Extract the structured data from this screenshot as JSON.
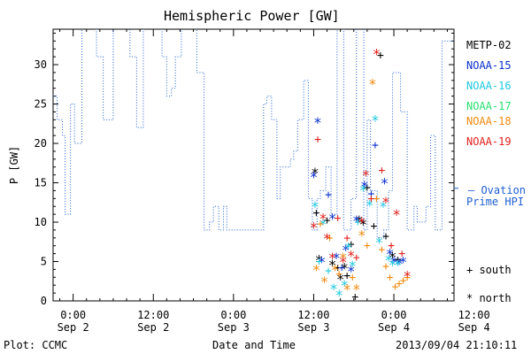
{
  "chart_data": {
    "type": "line",
    "title": "Hemispheric Power [GW]",
    "ylabel": "P [GW]",
    "xlabel": "Date and Time",
    "ylim": [
      0,
      34.5
    ],
    "xlim": [
      -3,
      57
    ],
    "yticks": [
      0,
      5,
      10,
      15,
      20,
      25,
      30
    ],
    "xticks": [
      {
        "x": 0,
        "time": "0:00",
        "date": "Sep 2"
      },
      {
        "x": 12,
        "time": "12:00",
        "date": "Sep 2"
      },
      {
        "x": 24,
        "time": "0:00",
        "date": "Sep 3"
      },
      {
        "x": 36,
        "time": "12:00",
        "date": "Sep 3"
      },
      {
        "x": 48,
        "time": "0:00",
        "date": "Sep 4"
      },
      {
        "x": 60,
        "time": "12:00",
        "date": "Sep 4"
      }
    ],
    "x_units": "hours from Sep 2 0:00",
    "ovation_series": {
      "name": "Ovation Prime HPI",
      "color": "#1f5fd0",
      "steps": [
        [
          -3.0,
          26
        ],
        [
          -2.4,
          23
        ],
        [
          -1.6,
          21
        ],
        [
          -1.2,
          11
        ],
        [
          -0.4,
          25
        ],
        [
          0.2,
          20
        ],
        [
          1.3,
          35
        ],
        [
          2.8,
          35
        ],
        [
          3.5,
          31
        ],
        [
          4.5,
          23
        ],
        [
          6.0,
          35
        ],
        [
          7.5,
          35
        ],
        [
          8.5,
          31
        ],
        [
          9.5,
          22
        ],
        [
          10.5,
          35
        ],
        [
          12.5,
          35
        ],
        [
          13.3,
          31
        ],
        [
          14.0,
          26
        ],
        [
          14.7,
          27
        ],
        [
          15.3,
          31
        ],
        [
          16.2,
          35
        ],
        [
          17.0,
          35
        ],
        [
          17.8,
          35
        ],
        [
          18.5,
          29
        ],
        [
          19.6,
          9
        ],
        [
          20.4,
          10
        ],
        [
          21.0,
          12
        ],
        [
          21.8,
          9
        ],
        [
          22.5,
          12
        ],
        [
          23.0,
          9
        ],
        [
          24.0,
          9
        ],
        [
          27.5,
          9
        ],
        [
          28.5,
          25
        ],
        [
          29.0,
          26
        ],
        [
          29.7,
          23
        ],
        [
          30.5,
          13
        ],
        [
          31.0,
          17
        ],
        [
          32.5,
          18
        ],
        [
          33.0,
          19
        ],
        [
          33.6,
          23
        ],
        [
          34.5,
          28
        ],
        [
          35.2,
          13
        ],
        [
          35.8,
          9
        ],
        [
          36.5,
          13
        ],
        [
          37.0,
          14
        ],
        [
          37.8,
          17
        ],
        [
          38.6,
          11
        ],
        [
          39.5,
          35
        ],
        [
          40.5,
          9
        ],
        [
          41.6,
          13
        ],
        [
          42.4,
          35
        ],
        [
          43.5,
          9
        ],
        [
          44.0,
          23
        ],
        [
          44.5,
          14
        ],
        [
          45.5,
          8
        ],
        [
          46.5,
          9
        ],
        [
          47.2,
          14
        ],
        [
          47.8,
          29
        ],
        [
          48.4,
          29
        ],
        [
          49.0,
          24
        ],
        [
          50.0,
          9
        ],
        [
          51.0,
          12
        ],
        [
          51.5,
          10
        ],
        [
          52.0,
          10
        ],
        [
          52.8,
          12
        ],
        [
          53.5,
          21
        ],
        [
          54.2,
          9
        ],
        [
          55.0,
          9
        ],
        [
          55.2,
          33
        ]
      ]
    },
    "satellite_series": [
      {
        "name": "METP-02",
        "color": "#000000",
        "points": [
          [
            36.2,
            16.3,
            "n"
          ],
          [
            36.8,
            5.2,
            "n"
          ],
          [
            36.4,
            11.2,
            "s"
          ],
          [
            38.0,
            10.2,
            "s"
          ],
          [
            38.8,
            4.6,
            "n"
          ],
          [
            39.6,
            4.2,
            "s"
          ],
          [
            40.0,
            2.8,
            "n"
          ],
          [
            40.6,
            4.2,
            "n"
          ],
          [
            41.0,
            3.2,
            "s"
          ],
          [
            41.6,
            7.2,
            "s"
          ],
          [
            42.2,
            0.5,
            "s"
          ],
          [
            42.8,
            10.2,
            "n"
          ],
          [
            43.4,
            9.8,
            "n"
          ],
          [
            44.0,
            14.4,
            "s"
          ],
          [
            45.0,
            9.5,
            "s"
          ],
          [
            46.0,
            31.2,
            "s"
          ],
          [
            46.8,
            8.2,
            "s"
          ],
          [
            47.8,
            5.6,
            "n"
          ],
          [
            48.6,
            5.2,
            "s"
          ]
        ]
      },
      {
        "name": "NOAA-15",
        "color": "#0a2ecc",
        "points": [
          [
            36.0,
            15.8,
            "n"
          ],
          [
            36.6,
            22.7,
            "n"
          ],
          [
            37.2,
            5.0,
            "n"
          ],
          [
            38.2,
            13.5,
            "s"
          ],
          [
            38.8,
            10.5,
            "n"
          ],
          [
            39.4,
            5.5,
            "n"
          ],
          [
            40.2,
            4.2,
            "s"
          ],
          [
            40.8,
            6.5,
            "n"
          ],
          [
            41.6,
            3.8,
            "n"
          ],
          [
            42.4,
            10.2,
            "n"
          ],
          [
            43.6,
            14.6,
            "n"
          ],
          [
            44.6,
            13.6,
            "s"
          ],
          [
            45.2,
            19.8,
            "s"
          ],
          [
            46.6,
            15.0,
            "n"
          ],
          [
            47.4,
            6.0,
            "n"
          ],
          [
            48.0,
            5.0,
            "n"
          ],
          [
            48.8,
            4.8,
            "n"
          ],
          [
            49.4,
            5.0,
            "n"
          ]
        ]
      },
      {
        "name": "NOAA-16",
        "color": "#20c8e0",
        "points": [
          [
            36.2,
            12.0,
            "n"
          ],
          [
            36.8,
            5.0,
            "s"
          ],
          [
            37.4,
            9.8,
            "n"
          ],
          [
            38.2,
            3.8,
            "s"
          ],
          [
            39.0,
            1.6,
            "n"
          ],
          [
            39.8,
            0.8,
            "n"
          ],
          [
            40.6,
            2.0,
            "n"
          ],
          [
            41.2,
            6.8,
            "n"
          ],
          [
            41.8,
            4.5,
            "n"
          ],
          [
            42.6,
            10.0,
            "s"
          ],
          [
            43.4,
            14.1,
            "n"
          ],
          [
            44.4,
            12.2,
            "n"
          ],
          [
            45.2,
            23.0,
            "n"
          ],
          [
            45.8,
            7.5,
            "n"
          ],
          [
            46.4,
            12.0,
            "n"
          ],
          [
            47.2,
            5.2,
            "n"
          ],
          [
            47.8,
            4.6,
            "n"
          ],
          [
            48.6,
            4.6,
            "n"
          ]
        ]
      },
      {
        "name": "NOAA-18",
        "color": "#f08a10",
        "points": [
          [
            36.4,
            4.0,
            "n"
          ],
          [
            37.0,
            9.8,
            "s"
          ],
          [
            37.6,
            2.5,
            "n"
          ],
          [
            38.4,
            8.0,
            "s"
          ],
          [
            39.2,
            4.0,
            "n"
          ],
          [
            39.8,
            3.4,
            "s"
          ],
          [
            40.4,
            5.5,
            "n"
          ],
          [
            41.0,
            1.5,
            "n"
          ],
          [
            41.8,
            3.0,
            "s"
          ],
          [
            42.4,
            1.5,
            "n"
          ],
          [
            43.2,
            8.4,
            "n"
          ],
          [
            44.0,
            7.0,
            "s"
          ],
          [
            44.8,
            27.6,
            "n"
          ],
          [
            45.4,
            13.0,
            "s"
          ],
          [
            46.2,
            6.5,
            "s"
          ],
          [
            46.8,
            4.4,
            "s"
          ],
          [
            47.4,
            3.0,
            "s"
          ],
          [
            48.2,
            1.8,
            "s"
          ],
          [
            48.8,
            2.2,
            "s"
          ],
          [
            49.4,
            2.6,
            "s"
          ],
          [
            50.0,
            3.0,
            "s"
          ]
        ]
      },
      {
        "name": "NOAA-19",
        "color": "#e0201c",
        "points": [
          [
            36.0,
            9.4,
            "n"
          ],
          [
            36.6,
            20.5,
            "s"
          ],
          [
            37.4,
            10.5,
            "n"
          ],
          [
            38.0,
            8.0,
            "n"
          ],
          [
            38.8,
            5.5,
            "n"
          ],
          [
            39.6,
            10.5,
            "s"
          ],
          [
            40.4,
            5.0,
            "n"
          ],
          [
            41.0,
            8.0,
            "s"
          ],
          [
            41.6,
            5.8,
            "n"
          ],
          [
            42.4,
            5.5,
            "s"
          ],
          [
            43.2,
            10.0,
            "n"
          ],
          [
            43.8,
            16.0,
            "n"
          ],
          [
            44.6,
            13.0,
            "s"
          ],
          [
            45.4,
            31.4,
            "n"
          ],
          [
            46.2,
            16.6,
            "s"
          ],
          [
            46.8,
            12.6,
            "n"
          ],
          [
            47.6,
            7.0,
            "s"
          ],
          [
            48.4,
            11.0,
            "n"
          ],
          [
            49.2,
            6.0,
            "s"
          ],
          [
            50.0,
            3.2,
            "n"
          ]
        ]
      }
    ]
  },
  "legend": [
    {
      "label": "METP-02",
      "color": "#000000"
    },
    {
      "label": "NOAA-15",
      "color": "#0a2ecc"
    },
    {
      "label": "NOAA-16",
      "color": "#20c8e0"
    },
    {
      "label": "NOAA-17",
      "color": "#28e070"
    },
    {
      "label": "NOAA-18",
      "color": "#f08a10"
    },
    {
      "label": "NOAA-19",
      "color": "#e0201c"
    }
  ],
  "ovation_label": {
    "line1": "— Ovation",
    "line2": "Prime HPI",
    "color": "#1f5fd0"
  },
  "marker_key": {
    "south": "+ south",
    "north": "* north"
  },
  "footer": {
    "plot": "Plot: CCMC",
    "timestamp": "2013/09/04 21:10:11"
  }
}
